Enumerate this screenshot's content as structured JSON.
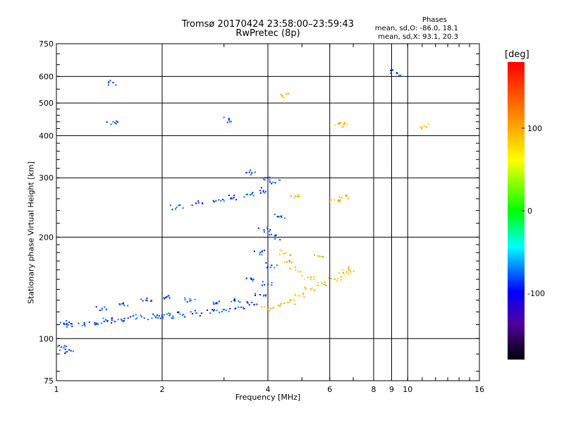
{
  "chart_data": {
    "type": "scatter",
    "title": "Tromsø 20170424 23:58:00–23:59:43",
    "subtitle": "RwPretec (8p)",
    "xlabel": "Frequency [MHz]",
    "ylabel": "Stationary phase Virtual Height [km]",
    "xscale": "log",
    "yscale": "log",
    "xlim": [
      1,
      16
    ],
    "ylim": [
      75,
      750
    ],
    "xticks": [
      1,
      2,
      4,
      6,
      8,
      10,
      16
    ],
    "xtick_labels": [
      "1",
      "2",
      "4",
      "6",
      "8",
      "10",
      "16"
    ],
    "xminor_ticks": [
      9
    ],
    "xminor_labels": [
      "9"
    ],
    "yticks": [
      75,
      100,
      200,
      300,
      400,
      500,
      600,
      750
    ],
    "ytick_labels": [
      "75",
      "100",
      "200",
      "300",
      "400",
      "500",
      "600",
      "750"
    ],
    "grid": true,
    "colorbar": {
      "label": "[deg]",
      "range": [
        -180,
        180
      ],
      "ticks": [
        100,
        0,
        -100
      ],
      "tick_labels": [
        "100",
        "0",
        "-100"
      ]
    },
    "phases": {
      "title": "Phases",
      "line_o": "mean, sd,O: -86.0, 18.1",
      "line_x": "mean, sd,X:  93.1, 20.3"
    },
    "series": [
      {
        "name": "O",
        "color_mean_deg": -86.0,
        "color_sd_deg": 18.1,
        "points": [
          [
            1.05,
            111
          ],
          [
            1.07,
            110
          ],
          [
            1.2,
            110
          ],
          [
            1.3,
            111
          ],
          [
            1.4,
            113
          ],
          [
            1.5,
            114
          ],
          [
            1.6,
            115
          ],
          [
            1.75,
            116
          ],
          [
            1.9,
            117
          ],
          [
            2.0,
            116
          ],
          [
            2.1,
            117
          ],
          [
            2.3,
            118
          ],
          [
            2.5,
            119
          ],
          [
            2.8,
            121
          ],
          [
            3.0,
            122
          ],
          [
            3.3,
            124
          ],
          [
            3.6,
            128
          ],
          [
            3.8,
            135
          ],
          [
            4.0,
            145
          ],
          [
            4.1,
            165
          ],
          [
            4.2,
            200
          ],
          [
            4.3,
            230
          ],
          [
            4.2,
            290
          ],
          [
            4.0,
            300
          ],
          [
            1.35,
            123
          ],
          [
            1.55,
            127
          ],
          [
            1.8,
            130
          ],
          [
            2.1,
            132
          ],
          [
            2.4,
            131
          ],
          [
            2.8,
            128
          ],
          [
            3.2,
            130
          ],
          [
            3.6,
            150
          ],
          [
            3.8,
            180
          ],
          [
            3.9,
            210
          ],
          [
            2.2,
            245
          ],
          [
            2.5,
            252
          ],
          [
            2.9,
            258
          ],
          [
            3.2,
            262
          ],
          [
            3.5,
            268
          ],
          [
            3.8,
            275
          ],
          [
            3.6,
            310
          ],
          [
            1.05,
            94
          ],
          [
            1.1,
            92
          ],
          [
            1.45,
            575
          ],
          [
            1.45,
            440
          ],
          [
            3.1,
            445
          ],
          [
            9.3,
            615
          ]
        ]
      },
      {
        "name": "X",
        "color_mean_deg": 93.1,
        "color_sd_deg": 20.3,
        "points": [
          [
            4.0,
            122
          ],
          [
            4.3,
            125
          ],
          [
            4.6,
            128
          ],
          [
            4.9,
            134
          ],
          [
            5.3,
            140
          ],
          [
            5.7,
            146
          ],
          [
            6.2,
            150
          ],
          [
            6.6,
            155
          ],
          [
            6.8,
            160
          ],
          [
            4.6,
            170
          ],
          [
            4.8,
            160
          ],
          [
            5.2,
            152
          ],
          [
            5.6,
            175
          ],
          [
            6.4,
            435
          ],
          [
            6.6,
            432
          ],
          [
            6.2,
            258
          ],
          [
            6.5,
            262
          ],
          [
            11.3,
            425
          ],
          [
            4.4,
            525
          ],
          [
            4.8,
            265
          ],
          [
            4.5,
            180
          ]
        ]
      }
    ]
  }
}
